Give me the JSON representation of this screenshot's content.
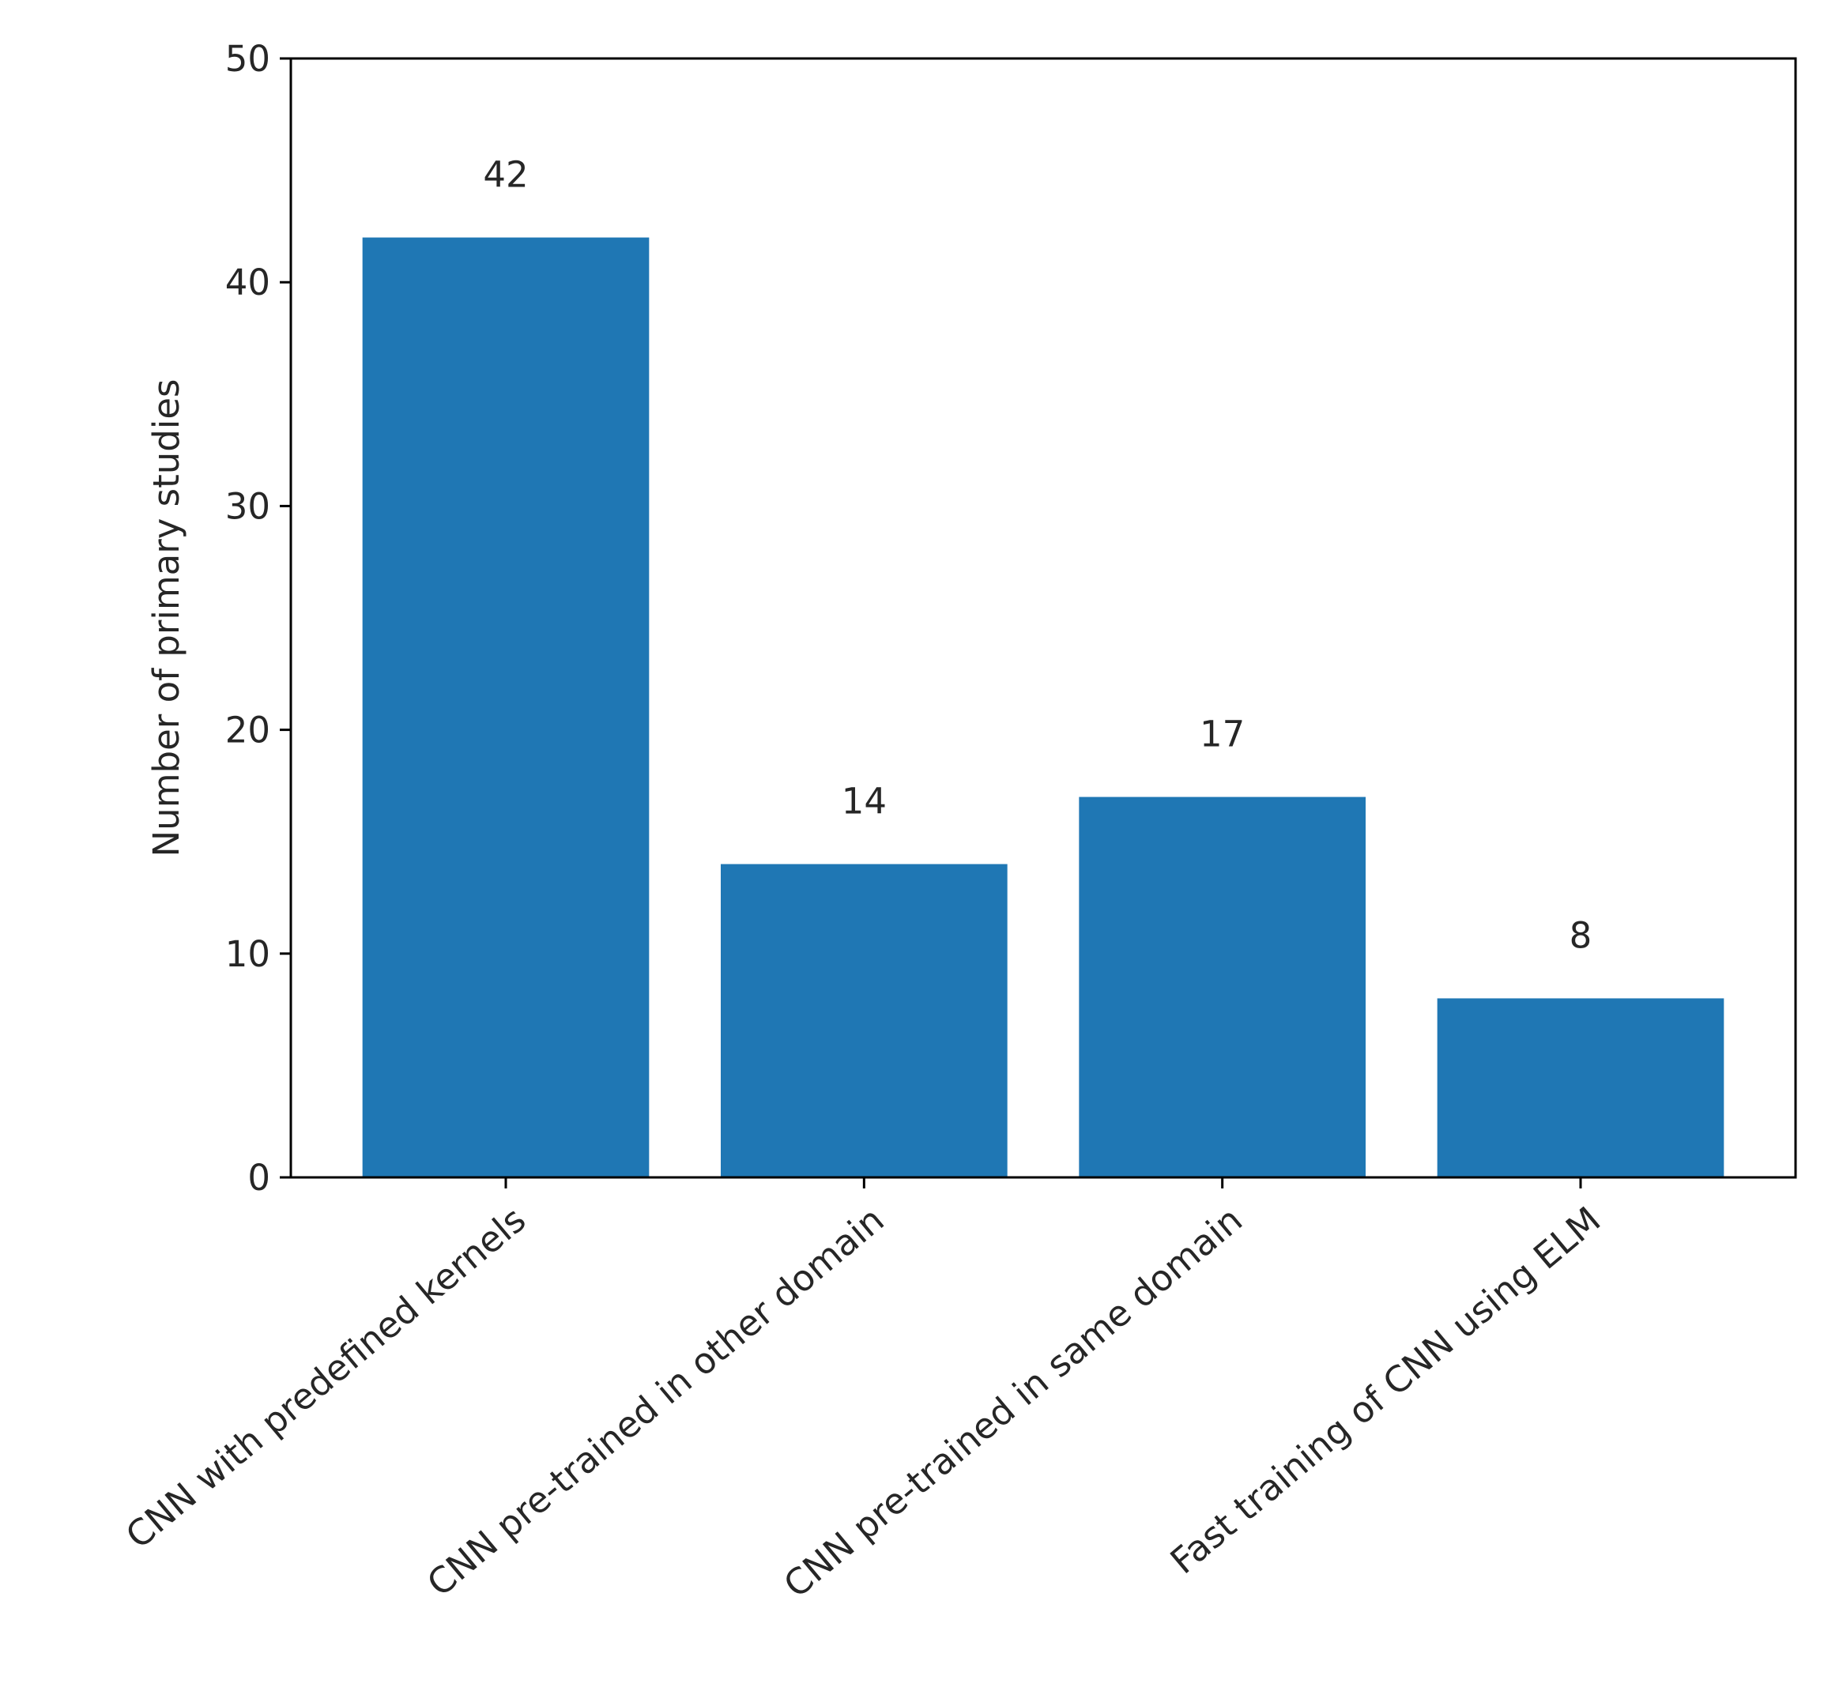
{
  "chart_data": {
    "type": "bar",
    "title": "",
    "xlabel": "",
    "ylabel": "Number of primary studies",
    "categories": [
      "CNN with predefined kernels",
      "CNN pre-trained in other domain",
      "CNN pre-trained in same domain",
      "Fast training of CNN using ELM"
    ],
    "values": [
      42,
      14,
      17,
      8
    ],
    "data_labels": [
      "42",
      "14",
      "17",
      "8"
    ],
    "ylim": [
      0,
      50
    ],
    "yticks": [
      0,
      10,
      20,
      30,
      40,
      50
    ],
    "ytick_labels": [
      "0",
      "10",
      "20",
      "30",
      "40",
      "50"
    ],
    "bar_color": "#1f77b4",
    "grid": false,
    "legend": "none"
  }
}
